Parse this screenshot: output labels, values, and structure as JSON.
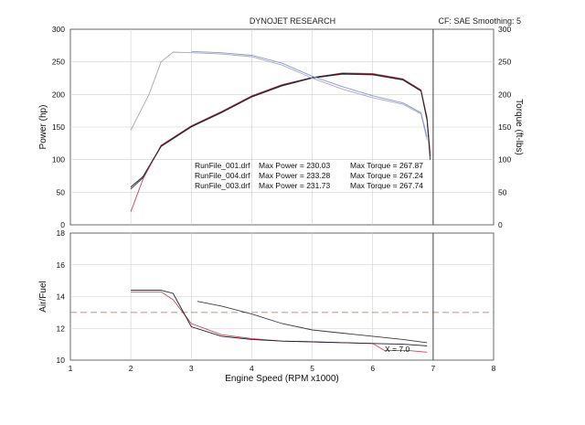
{
  "header": {
    "title": "DYNOJET RESEARCH",
    "correction": "CF: SAE  Smoothing: 5"
  },
  "colors": {
    "run1": "#3b3b3b",
    "run2": "#c8485a",
    "run3": "#1e1e2e",
    "power_dim": "#a8a8b8",
    "torque": "#8899cc",
    "ref_line": "#d05a5a",
    "grid": "#cfcfcf",
    "marker": "#555555"
  },
  "annotations": {
    "lines": [
      {
        "file": "RunFile_001.drf",
        "power": "Max Power = 230.03",
        "torque": "Max Torque = 267.87"
      },
      {
        "file": "RunFile_004.drf",
        "power": "Max Power = 233.28",
        "torque": "Max Torque = 267.24"
      },
      {
        "file": "RunFile_003.drf",
        "power": "Max Power = 231.73",
        "torque": "Max Torque = 267.74"
      }
    ],
    "afr_marker_label": "X = 7.0"
  },
  "chart_data": [
    {
      "type": "line",
      "title": "DYNOJET RESEARCH",
      "xlabel": "",
      "ylabel": "Power (hp)",
      "y2label": "Torque (ft-lbs)",
      "xlim": [
        1,
        8
      ],
      "ylim": [
        0,
        300
      ],
      "y2lim": [
        0,
        300
      ],
      "yticks": [
        0,
        50,
        100,
        150,
        200,
        250,
        300
      ],
      "grid": true,
      "series": [
        {
          "axis": "left",
          "color_key": "run1",
          "x": [
            2.0,
            2.2,
            2.5,
            3.0,
            3.5,
            4.0,
            4.5,
            5.0,
            5.5,
            6.0,
            6.5,
            6.8,
            6.9,
            6.95
          ],
          "y": [
            55,
            72,
            120,
            150,
            172,
            196,
            213,
            225,
            231,
            230,
            222,
            205,
            160,
            100
          ]
        },
        {
          "axis": "left",
          "color_key": "run2",
          "x": [
            2.0,
            2.2,
            2.5,
            3.0,
            3.5,
            4.0,
            4.5,
            5.0,
            5.5,
            6.0,
            6.5,
            6.8,
            6.9,
            6.95
          ],
          "y": [
            20,
            70,
            122,
            152,
            174,
            198,
            215,
            226,
            233,
            232,
            224,
            207,
            165,
            110
          ]
        },
        {
          "axis": "left",
          "color_key": "run3",
          "x": [
            2.0,
            2.2,
            2.5,
            3.0,
            3.5,
            4.0,
            4.5,
            5.0,
            5.5,
            6.0,
            6.5,
            6.8,
            6.9,
            6.95
          ],
          "y": [
            58,
            74,
            121,
            151,
            173,
            197,
            214,
            226,
            232,
            231,
            223,
            206,
            162,
            105
          ]
        },
        {
          "axis": "right",
          "color_key": "power_dim",
          "x": [
            2.0,
            2.3,
            2.5,
            2.7,
            3.0,
            3.5,
            4.0,
            4.5,
            5.0,
            5.5,
            6.0,
            6.5,
            6.8,
            6.9
          ],
          "y": [
            145,
            200,
            250,
            265,
            264,
            262,
            258,
            245,
            225,
            208,
            195,
            185,
            170,
            130
          ]
        },
        {
          "axis": "right",
          "color_key": "torque",
          "x": [
            3.0,
            3.5,
            4.0,
            4.5,
            5.0,
            5.5,
            6.0,
            6.5,
            6.8,
            6.9
          ],
          "y": [
            266,
            264,
            260,
            248,
            228,
            212,
            198,
            187,
            172,
            135
          ]
        }
      ]
    },
    {
      "type": "line",
      "title": "",
      "xlabel": "Engine Speed (RPM x1000)",
      "ylabel": "Air/Fuel",
      "xlim": [
        1,
        8
      ],
      "ylim": [
        10,
        18
      ],
      "xticks": [
        1,
        2,
        3,
        4,
        5,
        6,
        7,
        8
      ],
      "yticks": [
        10,
        12,
        14,
        16,
        18
      ],
      "grid": true,
      "reference_y": 13.0,
      "marker_x": 7.0,
      "series": [
        {
          "color_key": "run1",
          "x": [
            3.1,
            3.5,
            4.0,
            4.5,
            5.0,
            5.5,
            6.0,
            6.5,
            6.9
          ],
          "y": [
            13.7,
            13.4,
            12.9,
            12.3,
            11.9,
            11.7,
            11.5,
            11.3,
            11.1
          ]
        },
        {
          "color_key": "run2",
          "x": [
            2.0,
            2.5,
            2.7,
            3.0,
            3.5,
            4.0,
            4.5,
            5.0,
            5.5,
            6.0,
            6.2,
            6.6,
            6.9
          ],
          "y": [
            14.3,
            14.3,
            13.8,
            12.3,
            11.6,
            11.35,
            11.2,
            11.15,
            11.1,
            11.05,
            10.6,
            10.6,
            10.5
          ]
        },
        {
          "color_key": "run3",
          "x": [
            2.0,
            2.5,
            2.7,
            3.0,
            3.5,
            4.0,
            4.5,
            5.0,
            5.5,
            6.0,
            6.5,
            6.9
          ],
          "y": [
            14.4,
            14.4,
            14.2,
            12.1,
            11.5,
            11.3,
            11.2,
            11.15,
            11.1,
            11.05,
            11.0,
            10.9
          ]
        }
      ]
    }
  ]
}
